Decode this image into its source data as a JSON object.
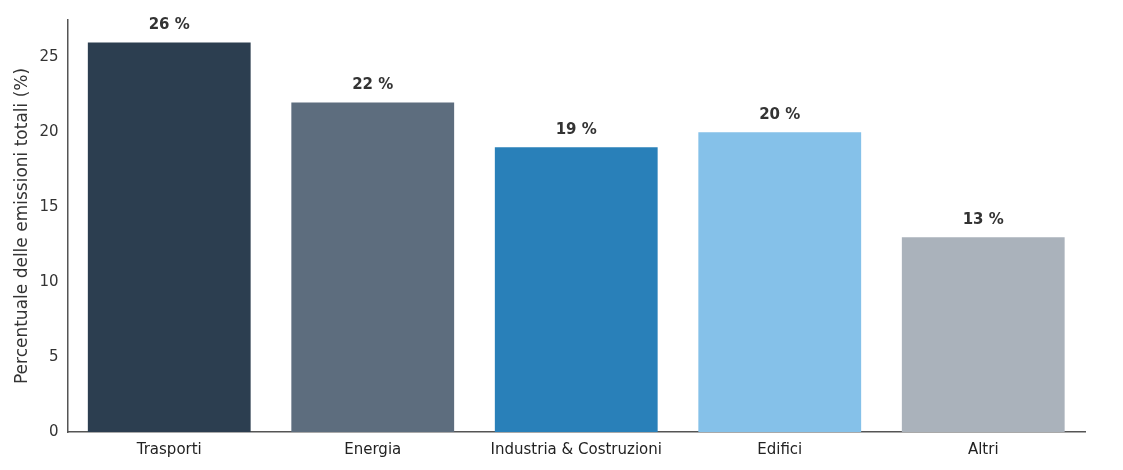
{
  "chart_data": {
    "type": "bar",
    "ylabel": "Percentuale delle emissioni totali (%)",
    "categories": [
      "Trasporti",
      "Energia",
      "Industria & Costruzioni",
      "Edifici",
      "Altri"
    ],
    "values": [
      26,
      22,
      19,
      20,
      13
    ],
    "colors": [
      "#2c3e50",
      "#5d6d7e",
      "#2980b9",
      "#85c1e9",
      "#aab2bb"
    ],
    "value_labels": [
      "26 %",
      "22 %",
      "19 %",
      "20 %",
      "13 %"
    ],
    "ylim": [
      0,
      27.5
    ],
    "yticks": [
      0,
      5,
      10,
      15,
      20,
      25
    ],
    "grid": false,
    "legend": false
  }
}
